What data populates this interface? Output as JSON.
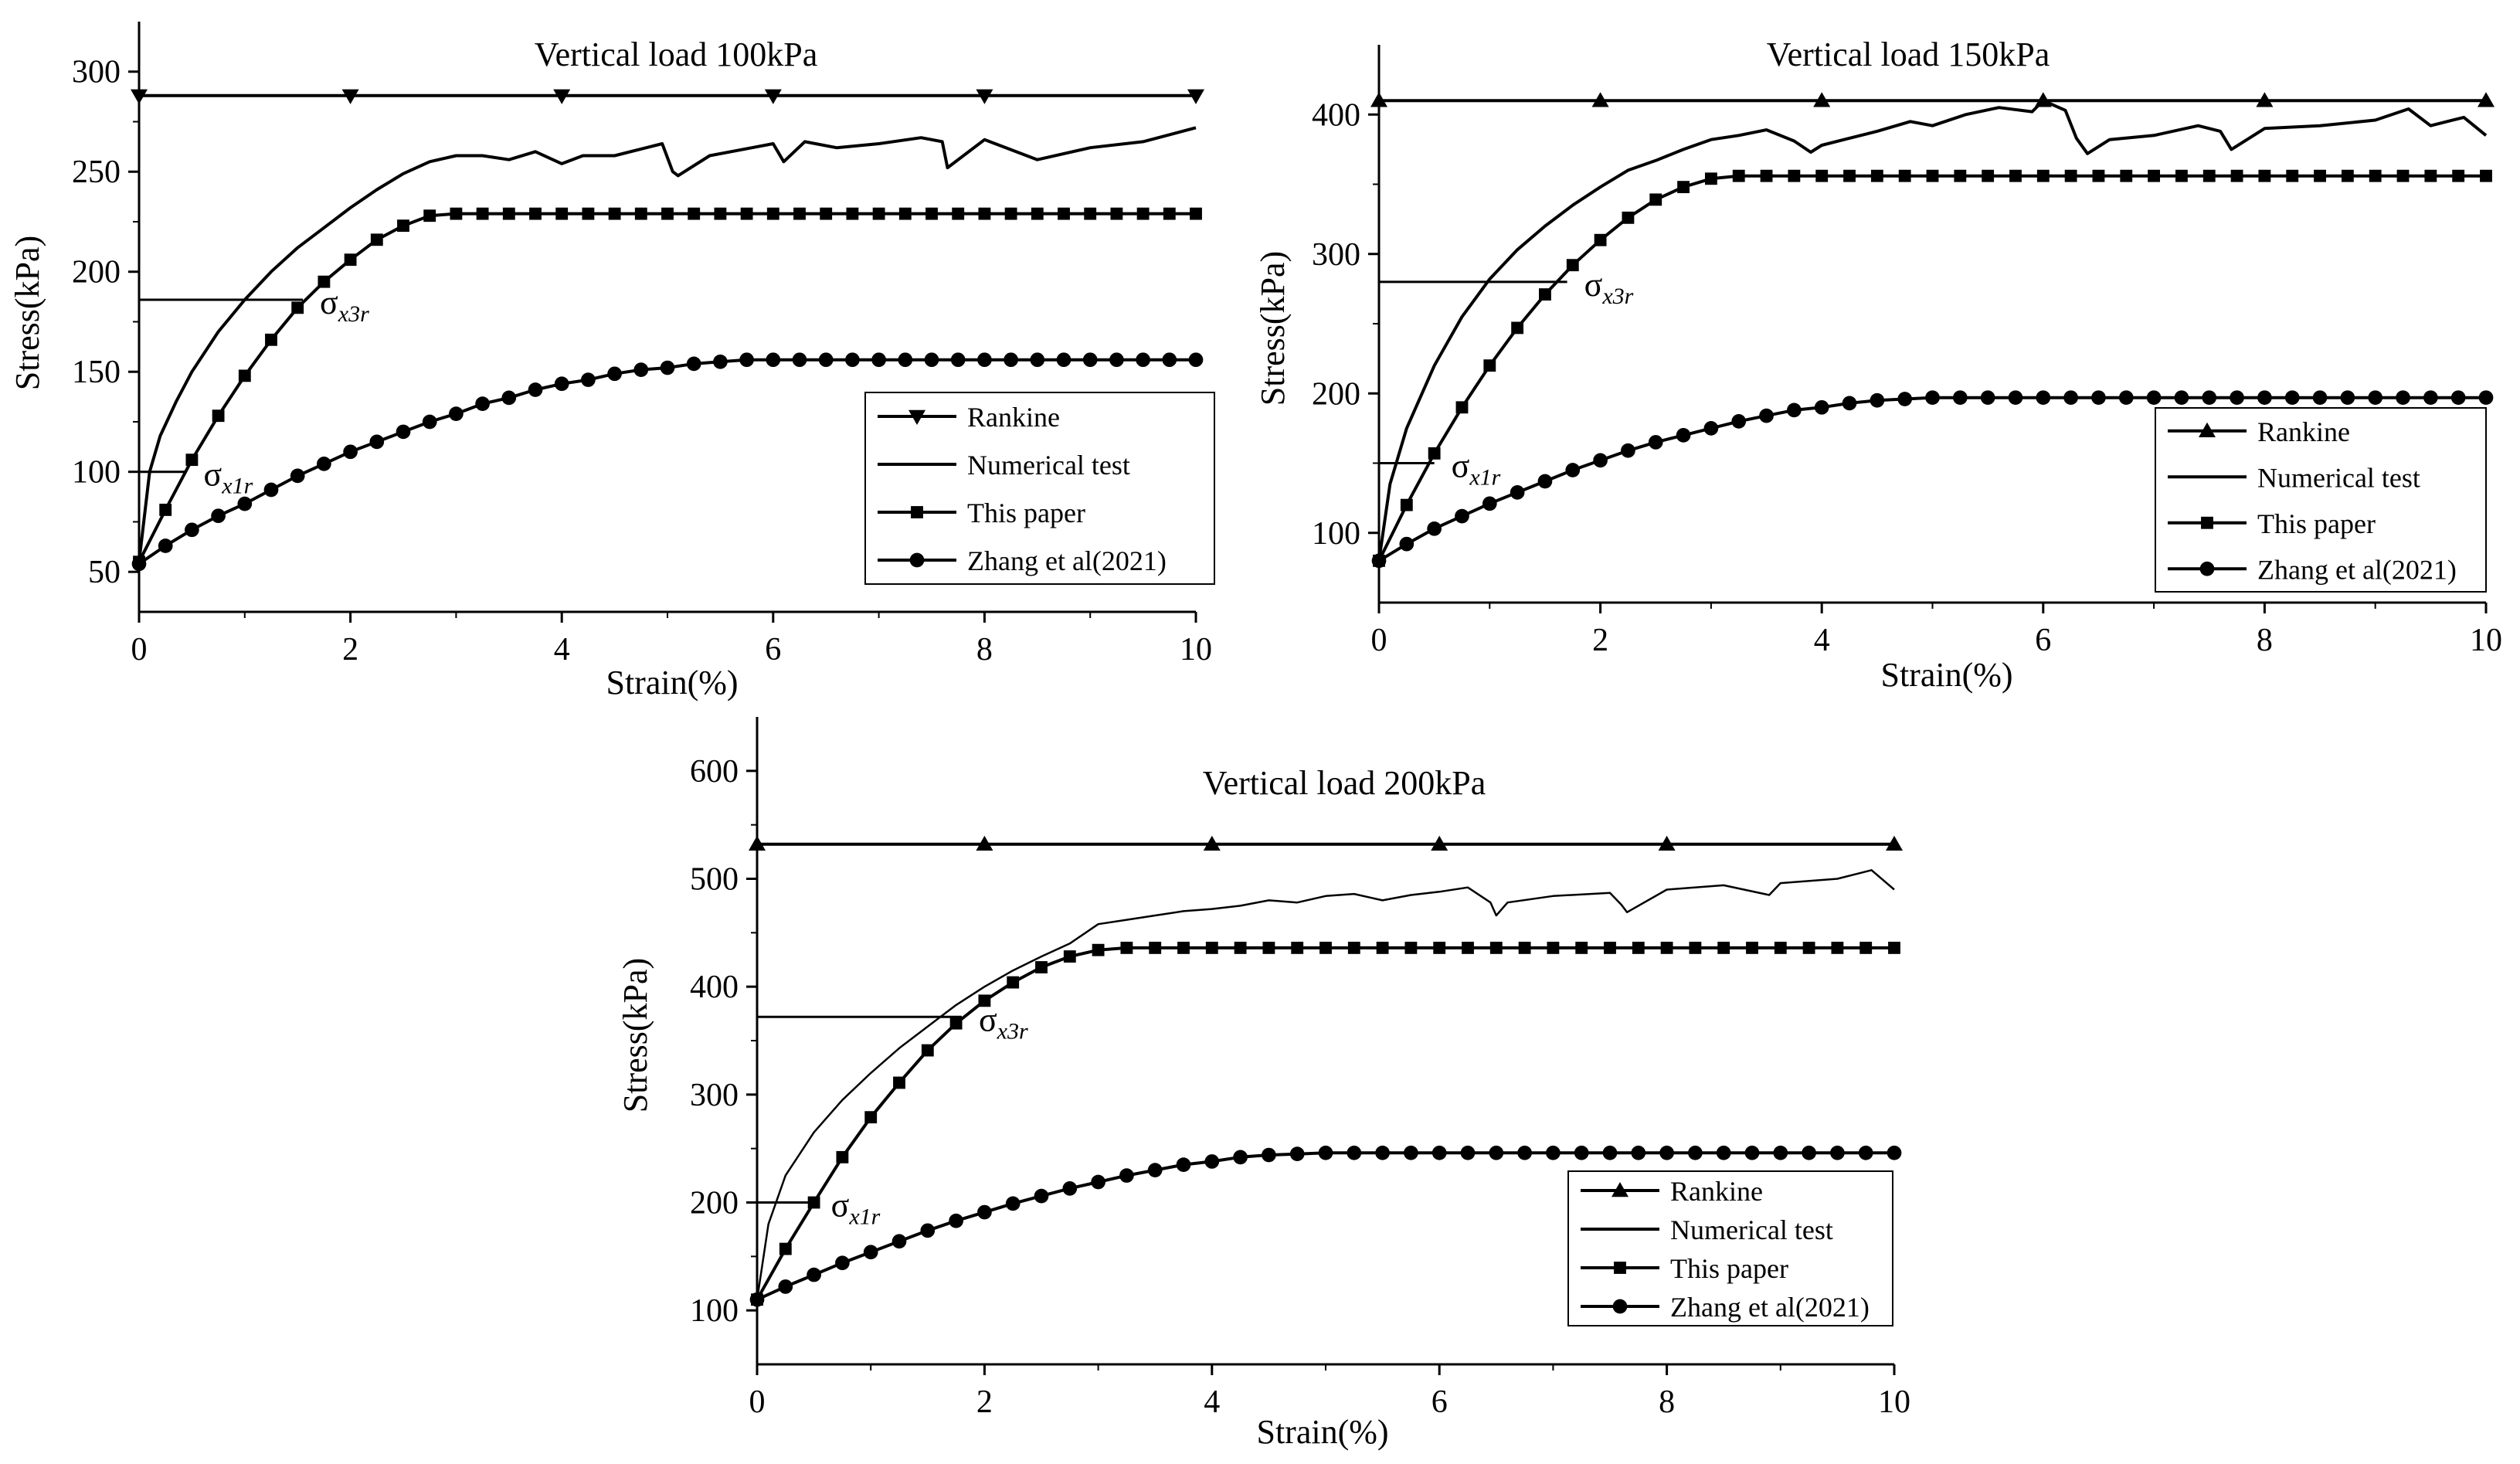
{
  "figure": {
    "strain_x": [
      0,
      0.25,
      0.5,
      0.75,
      1,
      1.25,
      1.5,
      1.75,
      2,
      2.25,
      2.5,
      2.75,
      3,
      3.25,
      3.5,
      3.75,
      4,
      4.25,
      4.5,
      4.75,
      5,
      5.25,
      5.5,
      5.75,
      6,
      6.25,
      6.5,
      6.75,
      7,
      7.25,
      7.5,
      7.75,
      8,
      8.25,
      8.5,
      8.75,
      9,
      9.25,
      9.5,
      9.75,
      10
    ],
    "legend_labels": [
      "Rankine",
      "Numerical test",
      "This paper",
      "Zhang et al(2021)"
    ]
  },
  "chart_data": [
    {
      "type": "line",
      "title": "Vertical load 100kPa",
      "xlabel": "Strain(%)",
      "ylabel": "Stress(kPa)",
      "xlim": [
        0,
        10
      ],
      "ylim": [
        30,
        325
      ],
      "xticks": [
        0,
        2,
        4,
        6,
        8,
        10
      ],
      "yticks": [
        50,
        100,
        150,
        200,
        250,
        300
      ],
      "legend_position": "bottom-right",
      "annotations": [
        {
          "label": "σx3r",
          "stress": 186,
          "strain_end": 1.55
        },
        {
          "label": "σx1r",
          "stress": 100,
          "strain_end": 0.45
        }
      ],
      "series": [
        {
          "name": "Rankine",
          "marker": "triangle-down",
          "x": [
            0,
            10
          ],
          "y": [
            288,
            288
          ],
          "marker_x": [
            0,
            2,
            4,
            6,
            8,
            10
          ]
        },
        {
          "name": "Numerical test",
          "marker": "none",
          "x": [
            0,
            0.1,
            0.2,
            0.35,
            0.5,
            0.75,
            1.0,
            1.25,
            1.5,
            1.75,
            2.0,
            2.25,
            2.5,
            2.75,
            3.0,
            3.25,
            3.5,
            3.75,
            4.0,
            4.2,
            4.5,
            4.8,
            4.95,
            5.05,
            5.1,
            5.4,
            5.8,
            6.0,
            6.1,
            6.3,
            6.6,
            7.0,
            7.4,
            7.6,
            7.65,
            8.0,
            8.5,
            9.0,
            9.5,
            10.0
          ],
          "y": [
            55,
            100,
            118,
            135,
            150,
            170,
            186,
            200,
            212,
            222,
            232,
            241,
            249,
            255,
            258,
            258,
            256,
            260,
            254,
            258,
            258,
            262,
            264,
            250,
            248,
            258,
            262,
            264,
            255,
            265,
            262,
            264,
            267,
            265,
            252,
            266,
            256,
            262,
            265,
            272
          ]
        },
        {
          "name": "This paper",
          "marker": "square",
          "x": [
            0,
            0.25,
            0.5,
            0.75,
            1,
            1.25,
            1.5,
            1.75,
            2,
            2.25,
            2.5,
            2.75,
            3,
            3.25,
            3.5,
            3.75,
            4,
            4.25,
            4.5,
            4.75,
            5,
            5.25,
            5.5,
            5.75,
            6,
            6.25,
            6.5,
            6.75,
            7,
            7.25,
            7.5,
            7.75,
            8,
            8.25,
            8.5,
            8.75,
            9,
            9.25,
            9.5,
            9.75,
            10
          ],
          "y": [
            55,
            81,
            106,
            128,
            148,
            166,
            182,
            195,
            206,
            216,
            223,
            228,
            229,
            229,
            229,
            229,
            229,
            229,
            229,
            229,
            229,
            229,
            229,
            229,
            229,
            229,
            229,
            229,
            229,
            229,
            229,
            229,
            229,
            229,
            229,
            229,
            229,
            229,
            229,
            229,
            229
          ]
        },
        {
          "name": "Zhang et al(2021)",
          "marker": "circle",
          "x": [
            0,
            0.25,
            0.5,
            0.75,
            1,
            1.25,
            1.5,
            1.75,
            2,
            2.25,
            2.5,
            2.75,
            3,
            3.25,
            3.5,
            3.75,
            4,
            4.25,
            4.5,
            4.75,
            5,
            5.25,
            5.5,
            5.75,
            6,
            6.25,
            6.5,
            6.75,
            7,
            7.25,
            7.5,
            7.75,
            8,
            8.25,
            8.5,
            8.75,
            9,
            9.25,
            9.5,
            9.75,
            10
          ],
          "y": [
            54,
            63,
            71,
            78,
            84,
            91,
            98,
            104,
            110,
            115,
            120,
            125,
            129,
            134,
            137,
            141,
            144,
            146,
            149,
            151,
            152,
            154,
            155,
            156,
            156,
            156,
            156,
            156,
            156,
            156,
            156,
            156,
            156,
            156,
            156,
            156,
            156,
            156,
            156,
            156,
            156
          ]
        }
      ]
    },
    {
      "type": "line",
      "title": "Vertical load 150kPa",
      "xlabel": "Strain(%)",
      "ylabel": "Stress(kPa)",
      "xlim": [
        0,
        10
      ],
      "ylim": [
        50,
        450
      ],
      "xticks": [
        0,
        2,
        4,
        6,
        8,
        10
      ],
      "yticks": [
        100,
        200,
        300,
        400
      ],
      "legend_position": "bottom-right",
      "annotations": [
        {
          "label": "σx3r",
          "stress": 280,
          "strain_end": 1.7
        },
        {
          "label": "σx1r",
          "stress": 150,
          "strain_end": 0.5
        }
      ],
      "series": [
        {
          "name": "Rankine",
          "marker": "triangle-up",
          "x": [
            0,
            10
          ],
          "y": [
            410,
            410
          ],
          "marker_x": [
            0,
            2,
            4,
            6,
            8,
            10
          ]
        },
        {
          "name": "Numerical test",
          "marker": "none",
          "x": [
            0,
            0.1,
            0.25,
            0.5,
            0.75,
            1.0,
            1.25,
            1.5,
            1.75,
            2.0,
            2.25,
            2.5,
            2.75,
            3.0,
            3.25,
            3.5,
            3.75,
            3.9,
            4.0,
            4.2,
            4.5,
            4.8,
            5.0,
            5.3,
            5.6,
            5.9,
            6.0,
            6.2,
            6.3,
            6.4,
            6.6,
            7.0,
            7.4,
            7.6,
            7.7,
            8.0,
            8.5,
            9.0,
            9.3,
            9.5,
            9.8,
            10.0
          ],
          "y": [
            80,
            135,
            175,
            220,
            255,
            282,
            303,
            320,
            335,
            348,
            360,
            367,
            375,
            382,
            385,
            389,
            381,
            373,
            378,
            382,
            388,
            395,
            392,
            400,
            405,
            402,
            410,
            403,
            383,
            372,
            382,
            385,
            392,
            388,
            375,
            390,
            392,
            396,
            404,
            392,
            398,
            385
          ]
        },
        {
          "name": "This paper",
          "marker": "square",
          "x": [
            0,
            0.25,
            0.5,
            0.75,
            1,
            1.25,
            1.5,
            1.75,
            2,
            2.25,
            2.5,
            2.75,
            3,
            3.25,
            3.5,
            3.75,
            4,
            4.25,
            4.5,
            4.75,
            5,
            5.25,
            5.5,
            5.75,
            6,
            6.25,
            6.5,
            6.75,
            7,
            7.25,
            7.5,
            7.75,
            8,
            8.25,
            8.5,
            8.75,
            9,
            9.25,
            9.5,
            9.75,
            10
          ],
          "y": [
            80,
            120,
            157,
            190,
            220,
            247,
            271,
            292,
            310,
            326,
            339,
            348,
            354,
            356,
            356,
            356,
            356,
            356,
            356,
            356,
            356,
            356,
            356,
            356,
            356,
            356,
            356,
            356,
            356,
            356,
            356,
            356,
            356,
            356,
            356,
            356,
            356,
            356,
            356,
            356,
            356
          ]
        },
        {
          "name": "Zhang et al(2021)",
          "marker": "circle",
          "x": [
            0,
            0.25,
            0.5,
            0.75,
            1,
            1.25,
            1.5,
            1.75,
            2,
            2.25,
            2.5,
            2.75,
            3,
            3.25,
            3.5,
            3.75,
            4,
            4.25,
            4.5,
            4.75,
            5,
            5.25,
            5.5,
            5.75,
            6,
            6.25,
            6.5,
            6.75,
            7,
            7.25,
            7.5,
            7.75,
            8,
            8.25,
            8.5,
            8.75,
            9,
            9.25,
            9.5,
            9.75,
            10
          ],
          "y": [
            80,
            92,
            103,
            112,
            121,
            129,
            137,
            145,
            152,
            159,
            165,
            170,
            175,
            180,
            184,
            188,
            190,
            193,
            195,
            196,
            197,
            197,
            197,
            197,
            197,
            197,
            197,
            197,
            197,
            197,
            197,
            197,
            197,
            197,
            197,
            197,
            197,
            197,
            197,
            197,
            197
          ]
        }
      ]
    },
    {
      "type": "line",
      "title": "Vertical load 200kPa",
      "xlabel": "Strain(%)",
      "ylabel": "Stress(kPa)",
      "xlim": [
        0,
        10
      ],
      "ylim": [
        50,
        650
      ],
      "xticks": [
        0,
        2,
        4,
        6,
        8,
        10
      ],
      "yticks": [
        100,
        200,
        300,
        400,
        500,
        600
      ],
      "legend_position": "bottom-right",
      "annotations": [
        {
          "label": "σx3r",
          "stress": 372,
          "strain_end": 1.8
        },
        {
          "label": "σx1r",
          "stress": 200,
          "strain_end": 0.5
        }
      ],
      "series": [
        {
          "name": "Rankine",
          "marker": "triangle-up",
          "x": [
            0,
            10
          ],
          "y": [
            532,
            532
          ],
          "marker_x": [
            0,
            2,
            4,
            6,
            8,
            10
          ]
        },
        {
          "name": "Numerical test",
          "marker": "none",
          "x": [
            0,
            0.1,
            0.25,
            0.5,
            0.75,
            1.0,
            1.25,
            1.5,
            1.75,
            2.0,
            2.25,
            2.5,
            2.75,
            3.0,
            3.25,
            3.5,
            3.75,
            4.0,
            4.25,
            4.5,
            4.75,
            5.0,
            5.25,
            5.5,
            5.75,
            6.0,
            6.25,
            6.45,
            6.5,
            6.6,
            7.0,
            7.5,
            7.6,
            7.65,
            8.0,
            8.5,
            8.9,
            9.0,
            9.5,
            9.8,
            10.0
          ],
          "y": [
            110,
            180,
            225,
            265,
            295,
            320,
            343,
            363,
            383,
            400,
            415,
            428,
            440,
            458,
            462,
            466,
            470,
            472,
            475,
            480,
            478,
            484,
            486,
            480,
            485,
            488,
            492,
            478,
            466,
            478,
            484,
            487,
            476,
            469,
            490,
            494,
            485,
            496,
            500,
            508,
            490
          ]
        },
        {
          "name": "This paper",
          "marker": "square",
          "x": [
            0,
            0.25,
            0.5,
            0.75,
            1,
            1.25,
            1.5,
            1.75,
            2,
            2.25,
            2.5,
            2.75,
            3,
            3.25,
            3.5,
            3.75,
            4,
            4.25,
            4.5,
            4.75,
            5,
            5.25,
            5.5,
            5.75,
            6,
            6.25,
            6.5,
            6.75,
            7,
            7.25,
            7.5,
            7.75,
            8,
            8.25,
            8.5,
            8.75,
            9,
            9.25,
            9.5,
            9.75,
            10
          ],
          "y": [
            110,
            157,
            200,
            242,
            279,
            311,
            341,
            366,
            387,
            404,
            418,
            428,
            434,
            436,
            436,
            436,
            436,
            436,
            436,
            436,
            436,
            436,
            436,
            436,
            436,
            436,
            436,
            436,
            436,
            436,
            436,
            436,
            436,
            436,
            436,
            436,
            436,
            436,
            436,
            436,
            436
          ]
        },
        {
          "name": "Zhang et al(2021)",
          "marker": "circle",
          "x": [
            0,
            0.25,
            0.5,
            0.75,
            1,
            1.25,
            1.5,
            1.75,
            2,
            2.25,
            2.5,
            2.75,
            3,
            3.25,
            3.5,
            3.75,
            4,
            4.25,
            4.5,
            4.75,
            5,
            5.25,
            5.5,
            5.75,
            6,
            6.25,
            6.5,
            6.75,
            7,
            7.25,
            7.5,
            7.75,
            8,
            8.25,
            8.5,
            8.75,
            9,
            9.25,
            9.5,
            9.75,
            10
          ],
          "y": [
            110,
            122,
            133,
            144,
            154,
            164,
            174,
            183,
            191,
            199,
            206,
            213,
            219,
            225,
            230,
            235,
            238,
            242,
            244,
            245,
            246,
            246,
            246,
            246,
            246,
            246,
            246,
            246,
            246,
            246,
            246,
            246,
            246,
            246,
            246,
            246,
            246,
            246,
            246,
            246,
            246
          ]
        }
      ]
    }
  ]
}
